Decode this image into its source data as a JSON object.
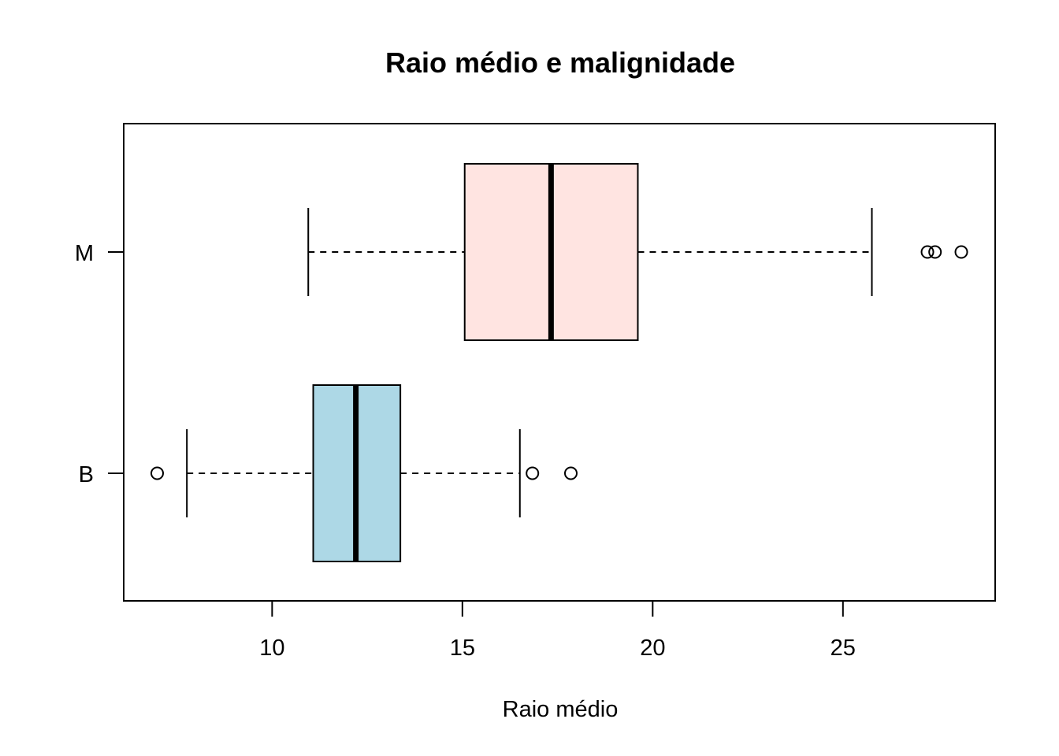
{
  "chart_data": {
    "type": "boxplot",
    "orientation": "horizontal",
    "title": "Raio médio e malignidade",
    "xlabel": "Raio médio",
    "ylabel": "",
    "xlim": [
      6.1,
      29.0
    ],
    "xticks": [
      10,
      15,
      20,
      25
    ],
    "grid": false,
    "categories": [
      "B",
      "M"
    ],
    "boxes": [
      {
        "category": "B",
        "fill": "#add8e6",
        "whisker_low": 7.76,
        "q1": 11.08,
        "median": 12.2,
        "q3": 13.37,
        "whisker_high": 16.51,
        "outliers": [
          6.98,
          16.84,
          17.85
        ]
      },
      {
        "category": "M",
        "fill": "#ffe4e1",
        "whisker_low": 10.95,
        "q1": 15.06,
        "median": 17.33,
        "q3": 19.61,
        "whisker_high": 25.76,
        "outliers": [
          27.22,
          27.42,
          28.11
        ]
      }
    ]
  }
}
